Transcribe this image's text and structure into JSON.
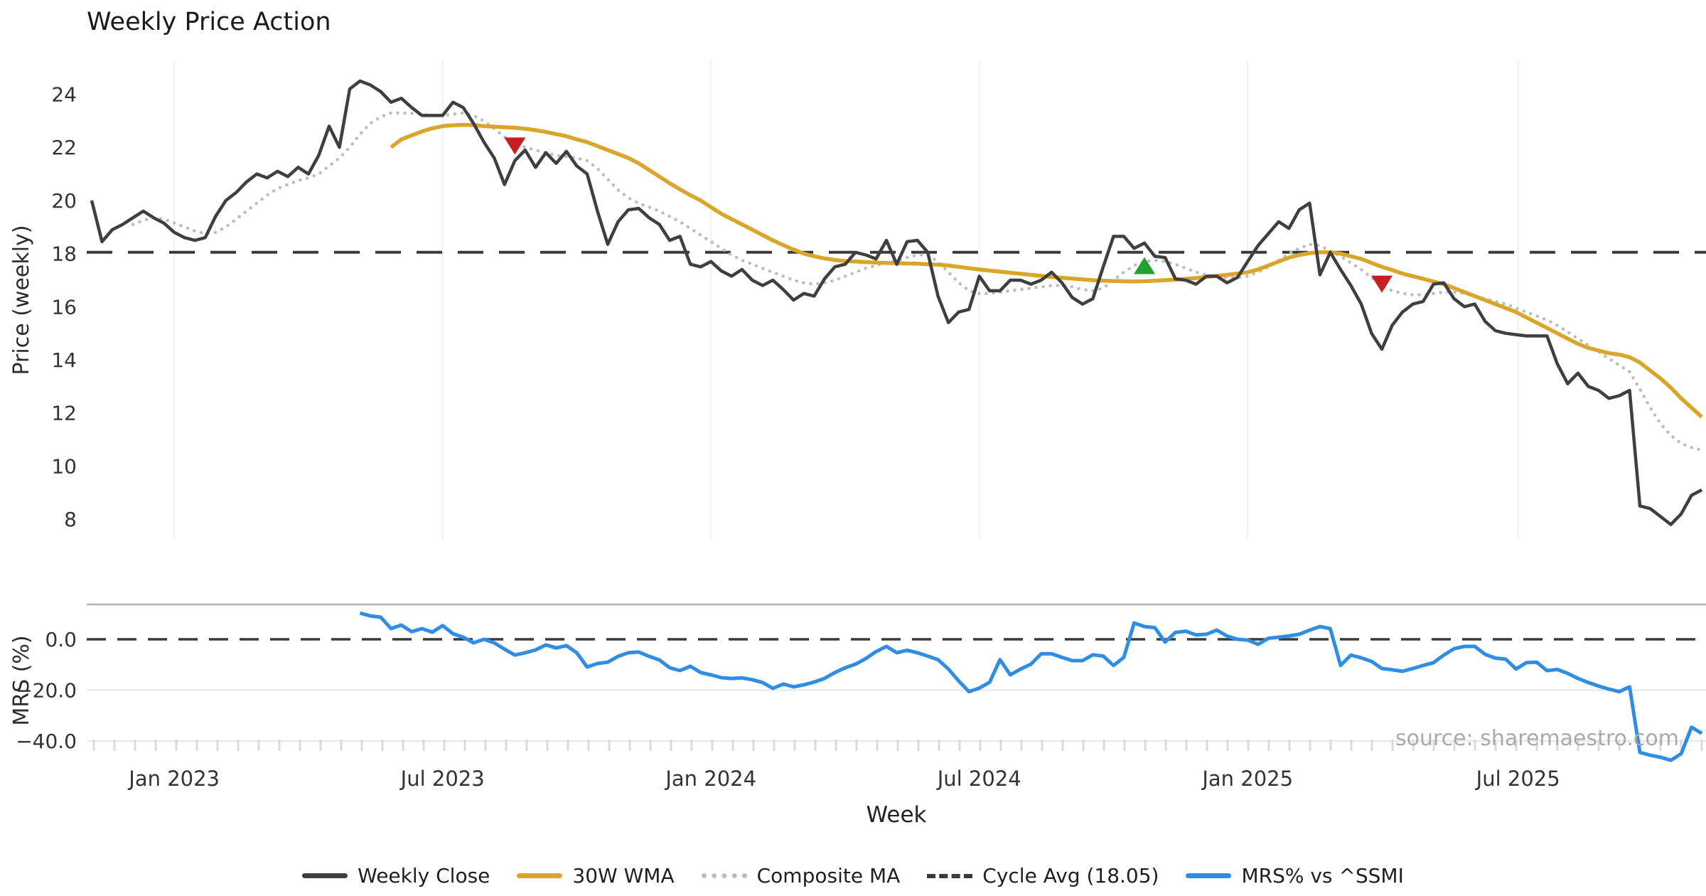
{
  "title": "Weekly Price Action",
  "source_note": "source: sharemaestro.com",
  "colors": {
    "close": "#3f3f3f",
    "wma": "#d9a62b",
    "composite": "#bdbdbd",
    "cycle_avg": "#3a3a3a",
    "mrs": "#2f8de4",
    "marker_down": "#c51f1f",
    "marker_up": "#21a12f",
    "grid": "#eef0f4",
    "grid_mrs": "#e8eaee",
    "minor_tick": "#d9dbe0",
    "panel_spine": "#b3b3b3",
    "tick_text": "#333333",
    "title_text": "#1a1a1a",
    "source_text": "#aaaaaa"
  },
  "chart_data": {
    "type": "line",
    "title": "Weekly Price Action",
    "xlabel": "Week",
    "x_unit": "weekly index from first data point (early Nov 2022)",
    "x_ticks": [
      {
        "week": 8,
        "label": "Jan 2023"
      },
      {
        "week": 34,
        "label": "Jul 2023"
      },
      {
        "week": 60,
        "label": "Jan 2024"
      },
      {
        "week": 86,
        "label": "Jul 2024"
      },
      {
        "week": 112,
        "label": "Jan 2025"
      },
      {
        "week": 138.2,
        "label": "Jul 2025"
      }
    ],
    "grid": "vertical-on-price-panel, horizontal-on-mrs-panel",
    "legend_position": "bottom-center",
    "legend": [
      {
        "label": "Weekly Close",
        "style": "solid",
        "color_key": "close"
      },
      {
        "label": "30W WMA",
        "style": "solid",
        "color_key": "wma"
      },
      {
        "label": "Composite MA",
        "style": "dotted",
        "color_key": "composite"
      },
      {
        "label": "Cycle Avg (18.05)",
        "style": "dashed",
        "color_key": "cycle_avg"
      },
      {
        "label": "MRS% vs ^SSMI",
        "style": "solid",
        "color_key": "mrs"
      }
    ],
    "panels": [
      {
        "name": "price",
        "ylabel": "Price (weekly)",
        "ylim": [
          7.2,
          25.3
        ],
        "yticks": [
          8,
          10,
          12,
          14,
          16,
          18,
          20,
          22,
          24
        ],
        "hline": {
          "label": "Cycle Avg (18.05)",
          "value": 18.05,
          "style": "dashed",
          "color_key": "cycle_avg"
        },
        "series": [
          {
            "name": "Weekly Close",
            "color_key": "close",
            "style": "solid",
            "width": 4.5,
            "start_week": 0,
            "values": [
              20.0,
              18.45,
              18.9,
              19.1,
              19.35,
              19.6,
              19.35,
              19.15,
              18.8,
              18.6,
              18.5,
              18.6,
              19.4,
              20.0,
              20.3,
              20.7,
              21.0,
              20.85,
              21.1,
              20.9,
              21.25,
              21.0,
              21.7,
              22.8,
              22.0,
              24.2,
              24.5,
              24.35,
              24.1,
              23.7,
              23.85,
              23.5,
              23.2,
              23.2,
              23.2,
              23.7,
              23.5,
              22.9,
              22.2,
              21.6,
              20.6,
              21.5,
              21.9,
              21.25,
              21.8,
              21.4,
              21.85,
              21.3,
              21.0,
              19.6,
              18.35,
              19.2,
              19.65,
              19.7,
              19.35,
              19.1,
              18.5,
              18.65,
              17.6,
              17.5,
              17.7,
              17.35,
              17.15,
              17.4,
              17.0,
              16.8,
              17.0,
              16.65,
              16.25,
              16.5,
              16.4,
              17.05,
              17.5,
              17.6,
              18.05,
              17.95,
              17.8,
              18.5,
              17.6,
              18.45,
              18.5,
              18.05,
              16.4,
              15.4,
              15.8,
              15.9,
              17.15,
              16.6,
              16.6,
              17.0,
              17.0,
              16.85,
              17.0,
              17.3,
              16.9,
              16.35,
              16.1,
              16.3,
              17.5,
              18.65,
              18.65,
              18.2,
              18.4,
              17.9,
              17.85,
              17.05,
              17.0,
              16.85,
              17.15,
              17.15,
              16.9,
              17.1,
              17.7,
              18.3,
              18.75,
              19.2,
              18.95,
              19.65,
              19.9,
              17.2,
              18.05,
              17.4,
              16.8,
              16.1,
              15.0,
              14.4,
              15.3,
              15.8,
              16.1,
              16.2,
              16.85,
              16.9,
              16.3,
              16.0,
              16.1,
              15.45,
              15.1,
              15.0,
              14.95,
              14.9,
              14.9,
              14.9,
              13.85,
              13.1,
              13.5,
              13.0,
              12.85,
              12.55,
              12.65,
              12.85,
              8.5,
              8.4,
              8.1,
              7.8,
              8.2,
              8.9,
              9.1
            ]
          },
          {
            "name": "30W WMA",
            "color_key": "wma",
            "style": "solid",
            "width": 5.5,
            "start_week": 29,
            "values": [
              22.0,
              22.3,
              22.45,
              22.6,
              22.72,
              22.8,
              22.83,
              22.85,
              22.84,
              22.8,
              22.78,
              22.76,
              22.74,
              22.7,
              22.65,
              22.58,
              22.5,
              22.42,
              22.3,
              22.2,
              22.05,
              21.9,
              21.75,
              21.6,
              21.4,
              21.15,
              20.9,
              20.65,
              20.42,
              20.2,
              20.0,
              19.75,
              19.5,
              19.3,
              19.1,
              18.9,
              18.7,
              18.5,
              18.32,
              18.15,
              18.0,
              17.9,
              17.82,
              17.76,
              17.72,
              17.7,
              17.68,
              17.66,
              17.65,
              17.64,
              17.63,
              17.62,
              17.6,
              17.58,
              17.55,
              17.5,
              17.45,
              17.4,
              17.36,
              17.32,
              17.28,
              17.24,
              17.2,
              17.16,
              17.12,
              17.09,
              17.06,
              17.03,
              17.0,
              16.98,
              16.97,
              16.96,
              16.95,
              16.96,
              16.98,
              17.0,
              17.02,
              17.05,
              17.08,
              17.12,
              17.16,
              17.2,
              17.25,
              17.3,
              17.4,
              17.55,
              17.7,
              17.85,
              17.95,
              18.02,
              18.05,
              18.05,
              18.0,
              17.9,
              17.8,
              17.65,
              17.5,
              17.38,
              17.25,
              17.15,
              17.05,
              16.95,
              16.85,
              16.7,
              16.55,
              16.4,
              16.25,
              16.1,
              15.95,
              15.8,
              15.6,
              15.4,
              15.2,
              15.0,
              14.8,
              14.6,
              14.45,
              14.35,
              14.25,
              14.2,
              14.1,
              13.9,
              13.6,
              13.3,
              12.95,
              12.55,
              12.2,
              11.85
            ]
          },
          {
            "name": "Composite MA",
            "color_key": "composite",
            "style": "dotted",
            "width": 4.5,
            "start_week": 4,
            "values": [
              19.1,
              19.25,
              19.35,
              19.3,
              19.15,
              19.0,
              18.85,
              18.75,
              18.8,
              19.0,
              19.3,
              19.6,
              19.9,
              20.2,
              20.45,
              20.6,
              20.75,
              20.85,
              21.0,
              21.3,
              21.6,
              22.0,
              22.5,
              22.9,
              23.15,
              23.3,
              23.3,
              23.28,
              23.25,
              23.2,
              23.2,
              23.25,
              23.3,
              23.2,
              23.0,
              22.7,
              22.4,
              22.15,
              22.0,
              21.9,
              21.8,
              21.7,
              21.65,
              21.6,
              21.5,
              21.2,
              20.8,
              20.4,
              20.1,
              19.9,
              19.75,
              19.6,
              19.4,
              19.2,
              18.95,
              18.7,
              18.45,
              18.2,
              17.95,
              17.75,
              17.6,
              17.45,
              17.3,
              17.15,
              17.0,
              16.9,
              16.85,
              16.9,
              17.0,
              17.15,
              17.3,
              17.45,
              17.55,
              17.65,
              17.75,
              17.85,
              17.95,
              17.95,
              17.7,
              17.3,
              16.9,
              16.6,
              16.5,
              16.5,
              16.55,
              16.6,
              16.65,
              16.7,
              16.75,
              16.8,
              16.8,
              16.75,
              16.65,
              16.6,
              16.7,
              17.0,
              17.3,
              17.55,
              17.7,
              17.75,
              17.7,
              17.6,
              17.45,
              17.3,
              17.2,
              17.15,
              17.1,
              17.1,
              17.15,
              17.3,
              17.5,
              17.75,
              18.0,
              18.2,
              18.35,
              18.3,
              18.1,
              17.9,
              17.65,
              17.4,
              17.1,
              16.8,
              16.6,
              16.5,
              16.45,
              16.45,
              16.5,
              16.55,
              16.55,
              16.5,
              16.4,
              16.3,
              16.2,
              16.1,
              15.95,
              15.8,
              15.65,
              15.5,
              15.3,
              15.05,
              14.8,
              14.55,
              14.3,
              14.05,
              13.8,
              13.55,
              12.9,
              12.2,
              11.6,
              11.15,
              10.85,
              10.7,
              10.6
            ]
          }
        ],
        "markers": [
          {
            "shape": "triangle-down",
            "color_key": "marker_down",
            "week": 41,
            "value": 22.05
          },
          {
            "shape": "triangle-up",
            "color_key": "marker_up",
            "week": 102,
            "value": 17.55
          },
          {
            "shape": "triangle-down",
            "color_key": "marker_down",
            "week": 125,
            "value": 16.85
          }
        ]
      },
      {
        "name": "mrs",
        "ylabel": "MRS (%)",
        "ylim": [
          -48.5,
          13.7
        ],
        "yticks": [
          0,
          -20,
          -40
        ],
        "ytick_labels": [
          "0.0",
          "−20.0",
          "−40.0"
        ],
        "hline": {
          "value": 0.0,
          "style": "dashed",
          "color_key": "cycle_avg"
        },
        "series": [
          {
            "name": "MRS% vs ^SSMI",
            "color_key": "mrs",
            "style": "solid",
            "width": 5,
            "start_week": 26,
            "values": [
              10.3,
              9.2,
              8.7,
              4.2,
              5.6,
              3.0,
              4.2,
              2.8,
              5.4,
              2.2,
              0.8,
              -1.4,
              0.0,
              -1.4,
              -3.9,
              -6.2,
              -5.3,
              -4.2,
              -2.2,
              -3.4,
              -2.5,
              -5.3,
              -10.9,
              -9.5,
              -9.0,
              -6.7,
              -5.3,
              -5.0,
              -6.7,
              -8.1,
              -11.2,
              -12.3,
              -10.6,
              -13.1,
              -14.0,
              -15.1,
              -15.4,
              -15.2,
              -15.9,
              -17.0,
              -19.3,
              -17.6,
              -18.7,
              -17.9,
              -16.8,
              -15.4,
              -13.1,
              -11.2,
              -9.8,
              -7.6,
              -4.8,
              -2.8,
              -5.3,
              -4.3,
              -5.3,
              -6.6,
              -8.0,
              -11.7,
              -16.4,
              -20.6,
              -19.2,
              -16.9,
              -8.0,
              -14.0,
              -11.7,
              -9.8,
              -5.7,
              -5.7,
              -7.1,
              -8.4,
              -8.4,
              -6.1,
              -6.6,
              -10.3,
              -7.1,
              6.4,
              5.0,
              4.6,
              -1.1,
              2.7,
              3.2,
              1.7,
              2.0,
              3.6,
              1.3,
              0.0,
              -0.3,
              -2.0,
              0.4,
              0.8,
              1.3,
              2.0,
              3.6,
              5.0,
              4.2,
              -10.3,
              -6.2,
              -7.3,
              -8.7,
              -11.5,
              -12.0,
              -12.6,
              -11.5,
              -10.3,
              -9.2,
              -6.2,
              -3.7,
              -2.8,
              -2.8,
              -5.9,
              -7.4,
              -7.8,
              -11.7,
              -9.2,
              -9.0,
              -12.3,
              -11.9,
              -13.4,
              -15.4,
              -17.0,
              -18.4,
              -19.6,
              -20.6,
              -18.7,
              -44.5,
              -45.6,
              -46.4,
              -47.6,
              -45.0,
              -34.6,
              -37.0
            ]
          }
        ]
      }
    ]
  }
}
